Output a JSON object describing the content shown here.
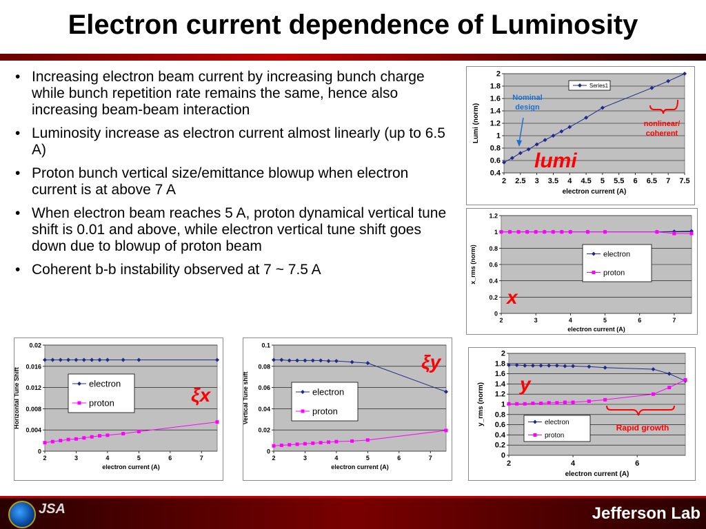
{
  "page": {
    "title": "Electron current dependence of Luminosity"
  },
  "bullets": [
    "Increasing electron beam current by increasing bunch charge while bunch repetition rate remains the same, hence also increasing beam-beam interaction",
    "Luminosity increase as electron current almost linearly (up to 6.5 A)",
    "Proton bunch vertical size/emittance blowup when electron current is at above 7 A",
    "When electron beam reaches 5 A, proton dynamical vertical tune shift is 0.01 and above, while electron vertical tune shift goes down due to blowup of proton beam",
    "Coherent b-b instability observed at 7 ~ 7.5 A"
  ],
  "footer": {
    "left_logo_text": "JSA",
    "right_logo_text": "Jefferson Lab"
  },
  "colors": {
    "electron": "#1f2a8a",
    "proton": "#ff00ff",
    "plot_bg": "#c0c0c0",
    "annotation_red": "#ff0000",
    "annotation_blue": "#1a6fd0"
  },
  "chart_data": [
    {
      "id": "lumi",
      "type": "line",
      "xlabel": "electron current (A)",
      "ylabel": "Lumi (norm)",
      "xlim": [
        2,
        7.5
      ],
      "ylim": [
        0.4,
        2
      ],
      "xticks": [
        2,
        2.5,
        3,
        3.5,
        4,
        4.5,
        5,
        5.5,
        6,
        6.5,
        7,
        7.5
      ],
      "yticks": [
        0.4,
        0.6,
        0.8,
        1,
        1.2,
        1.4,
        1.6,
        1.8,
        2
      ],
      "legend_position": "top-center",
      "series": [
        {
          "name": "Series1",
          "color": "#1f2a8a",
          "marker": "diamond",
          "x": [
            2,
            2.25,
            2.5,
            2.75,
            3,
            3.25,
            3.5,
            3.75,
            4,
            4.5,
            5,
            6.5,
            7,
            7.5
          ],
          "y": [
            0.57,
            0.64,
            0.72,
            0.78,
            0.86,
            0.93,
            1.0,
            1.07,
            1.14,
            1.29,
            1.45,
            1.77,
            1.88,
            2.0
          ]
        }
      ],
      "annotations": [
        {
          "text": "Nominal design",
          "color": "#1a6fd0"
        },
        {
          "text": "nonlinear/ coherent",
          "color": "#ff0000"
        },
        {
          "text": "lumi",
          "color": "#ff0000"
        }
      ]
    },
    {
      "id": "x_rms",
      "type": "line",
      "xlabel": "electron current (A)",
      "ylabel": "x_rms (norm)",
      "xlim": [
        2,
        7.5
      ],
      "ylim": [
        0,
        1.2
      ],
      "xticks": [
        2,
        3,
        4,
        5,
        6,
        7
      ],
      "yticks": [
        0,
        0.2,
        0.4,
        0.6,
        0.8,
        1,
        1.2
      ],
      "legend_position": "right",
      "series": [
        {
          "name": "electron",
          "color": "#1f2a8a",
          "marker": "diamond",
          "x": [
            2,
            2.25,
            2.5,
            2.75,
            3,
            3.25,
            3.5,
            3.75,
            4,
            4.5,
            5,
            6.5,
            7,
            7.5
          ],
          "y": [
            1,
            1,
            1,
            1,
            1,
            1,
            1,
            1,
            1,
            1,
            1,
            1,
            1.005,
            1.01
          ]
        },
        {
          "name": "proton",
          "color": "#ff00ff",
          "marker": "square",
          "x": [
            2,
            2.25,
            2.5,
            2.75,
            3,
            3.25,
            3.5,
            3.75,
            4,
            4.5,
            5,
            6.5,
            7,
            7.5
          ],
          "y": [
            1,
            1,
            1,
            1,
            1,
            1,
            1,
            1,
            1,
            1,
            1,
            1,
            0.98,
            0.98
          ]
        }
      ],
      "annotations": [
        {
          "text": "x",
          "color": "#ff0000"
        }
      ]
    },
    {
      "id": "xi_x",
      "type": "line",
      "xlabel": "electron current (A)",
      "ylabel": "Horizontal Tune Shift",
      "xlim": [
        2,
        7.5
      ],
      "ylim": [
        0,
        0.02
      ],
      "xticks": [
        2,
        3,
        4,
        5,
        6,
        7
      ],
      "yticks": [
        0,
        0.004,
        0.008,
        0.012,
        0.016,
        0.02
      ],
      "legend_position": "left",
      "series": [
        {
          "name": "electron",
          "color": "#1f2a8a",
          "marker": "diamond",
          "x": [
            2,
            2.25,
            2.5,
            2.75,
            3,
            3.25,
            3.5,
            3.75,
            4,
            4.5,
            5,
            7.5
          ],
          "y": [
            0.0172,
            0.0172,
            0.0172,
            0.0172,
            0.0172,
            0.0172,
            0.0172,
            0.0172,
            0.0172,
            0.0172,
            0.0172,
            0.0172
          ]
        },
        {
          "name": "proton",
          "color": "#ff00ff",
          "marker": "square",
          "x": [
            2,
            2.25,
            2.5,
            2.75,
            3,
            3.25,
            3.5,
            3.75,
            4,
            4.5,
            5,
            7.5
          ],
          "y": [
            0.0016,
            0.0018,
            0.002,
            0.0022,
            0.0023,
            0.0025,
            0.0027,
            0.0029,
            0.003,
            0.0033,
            0.0037,
            0.0055
          ]
        }
      ],
      "annotations": [
        {
          "text": "ξx",
          "color": "#ff0000"
        }
      ]
    },
    {
      "id": "xi_y",
      "type": "line",
      "xlabel": "electron current (A)",
      "ylabel": "Vertical Tune shift",
      "xlim": [
        2,
        7.5
      ],
      "ylim": [
        0,
        0.1
      ],
      "xticks": [
        2,
        3,
        4,
        5,
        6,
        7
      ],
      "yticks": [
        0,
        0.02,
        0.04,
        0.06,
        0.08,
        0.1
      ],
      "legend_position": "left",
      "series": [
        {
          "name": "electron",
          "color": "#1f2a8a",
          "marker": "diamond",
          "x": [
            2,
            2.25,
            2.5,
            2.75,
            3,
            3.25,
            3.5,
            3.75,
            4,
            4.5,
            5,
            7.5
          ],
          "y": [
            0.086,
            0.086,
            0.0855,
            0.0855,
            0.0855,
            0.0855,
            0.0855,
            0.085,
            0.085,
            0.084,
            0.083,
            0.056
          ]
        },
        {
          "name": "proton",
          "color": "#ff00ff",
          "marker": "square",
          "x": [
            2,
            2.25,
            2.5,
            2.75,
            3,
            3.25,
            3.5,
            3.75,
            4,
            4.5,
            5,
            7.5
          ],
          "y": [
            0.005,
            0.0055,
            0.006,
            0.0065,
            0.007,
            0.0075,
            0.008,
            0.0085,
            0.009,
            0.0095,
            0.0105,
            0.0195
          ]
        }
      ],
      "annotations": [
        {
          "text": "ξy",
          "color": "#ff0000"
        }
      ]
    },
    {
      "id": "y_rms",
      "type": "line",
      "xlabel": "electron current (A)",
      "ylabel": "y_rms (norm)",
      "xlim": [
        2,
        7.5
      ],
      "ylim": [
        0,
        2
      ],
      "xticks": [
        2,
        4,
        6
      ],
      "yticks": [
        0,
        0.2,
        0.4,
        0.6,
        0.8,
        1,
        1.2,
        1.4,
        1.6,
        1.8,
        2
      ],
      "legend_position": "bottom-left",
      "series": [
        {
          "name": "electron",
          "color": "#1f2a8a",
          "marker": "diamond",
          "x": [
            2,
            2.25,
            2.5,
            2.75,
            3,
            3.25,
            3.5,
            3.75,
            4,
            4.5,
            5,
            6.5,
            7,
            7.5
          ],
          "y": [
            1.77,
            1.77,
            1.76,
            1.76,
            1.76,
            1.76,
            1.76,
            1.75,
            1.75,
            1.74,
            1.72,
            1.69,
            1.6,
            1.46
          ]
        },
        {
          "name": "proton",
          "color": "#ff00ff",
          "marker": "square",
          "x": [
            2,
            2.25,
            2.5,
            2.75,
            3,
            3.25,
            3.5,
            3.75,
            4,
            4.5,
            5,
            6.5,
            7,
            7.5
          ],
          "y": [
            1.01,
            1.01,
            1.01,
            1.02,
            1.02,
            1.03,
            1.03,
            1.04,
            1.04,
            1.06,
            1.09,
            1.2,
            1.33,
            1.48
          ]
        }
      ],
      "annotations": [
        {
          "text": "y",
          "color": "#ff0000"
        },
        {
          "text": "Rapid growth",
          "color": "#ff0000"
        }
      ]
    }
  ]
}
